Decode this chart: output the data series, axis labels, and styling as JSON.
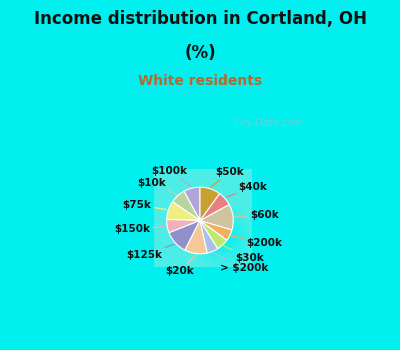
{
  "title_line1": "Income distribution in Cortland, OH",
  "title_line2": "(%)",
  "subtitle": "White residents",
  "title_color": "#111111",
  "subtitle_color": "#b8682a",
  "bg_cyan": "#00f0f0",
  "bg_chart": "#e0f2ec",
  "labels": [
    "$100k",
    "$10k",
    "$75k",
    "$150k",
    "$125k",
    "$20k",
    "> $200k",
    "$30k",
    "$200k",
    "$60k",
    "$40k",
    "$50k"
  ],
  "values": [
    8.0,
    7.5,
    9.0,
    6.5,
    11.5,
    11.0,
    5.5,
    6.0,
    5.5,
    12.5,
    7.0,
    10.0
  ],
  "colors": [
    "#b0a4d8",
    "#b8d4a0",
    "#f0ee80",
    "#f0b0bc",
    "#9090cc",
    "#f5c898",
    "#a8c0e8",
    "#c0e870",
    "#f0b060",
    "#d0c4a0",
    "#e88080",
    "#c8a030"
  ],
  "label_fontsize": 7.5,
  "wedge_linewidth": 0.8,
  "wedge_edgecolor": "#ffffff",
  "watermark": "City-Data.com",
  "watermark_color": "#aabbcc",
  "watermark_alpha": 0.65
}
